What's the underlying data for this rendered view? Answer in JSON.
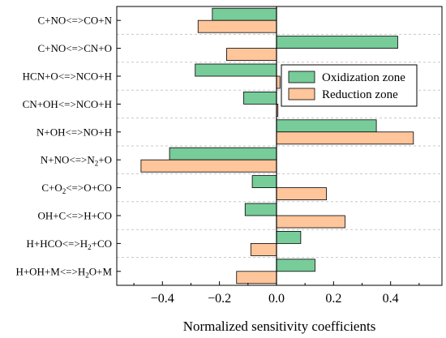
{
  "chart_data": {
    "type": "bar",
    "orientation": "horizontal",
    "title": "",
    "xlabel": "Normalized sensitivity coefficients",
    "ylabel": "",
    "xlim": [
      -0.56,
      0.58
    ],
    "xticks": [
      -0.4,
      -0.2,
      0.0,
      0.2,
      0.4
    ],
    "xtick_labels": [
      "−0.4",
      "−0.2",
      "0.0",
      "0.2",
      "0.4"
    ],
    "grid": "horizontal dashed",
    "legend_position": "upper-right",
    "categories": [
      "C+NO<=>CO+N",
      "C+NO<=>CN+O",
      "HCN+O<=>NCO+H",
      "CN+OH<=>NCO+H",
      "N+OH<=>NO+H",
      "N+NO<=>N2+O",
      "C+O2<=>O+CO",
      "OH+C<=>H+CO",
      "H+HCO<=>H2+CO",
      "H+OH+M<=>H2O+M"
    ],
    "category_parts": [
      [
        {
          "t": "C+NO<=>CO+N"
        }
      ],
      [
        {
          "t": "C+NO<=>CN+O"
        }
      ],
      [
        {
          "t": "HCN+O<=>NCO+H"
        }
      ],
      [
        {
          "t": "CN+OH<=>NCO+H"
        }
      ],
      [
        {
          "t": "N+OH<=>NO+H"
        }
      ],
      [
        {
          "t": "N+NO<=>N"
        },
        {
          "t": "2",
          "sub": true
        },
        {
          "t": "+O"
        }
      ],
      [
        {
          "t": "C+O"
        },
        {
          "t": "2",
          "sub": true
        },
        {
          "t": "<=>O+CO"
        }
      ],
      [
        {
          "t": "OH+C<=>H+CO"
        }
      ],
      [
        {
          "t": "H+HCO<=>H"
        },
        {
          "t": "2",
          "sub": true
        },
        {
          "t": "+CO"
        }
      ],
      [
        {
          "t": "H+OH+M<=>H"
        },
        {
          "t": "2",
          "sub": true
        },
        {
          "t": "O+M"
        }
      ]
    ],
    "series": [
      {
        "name": "Oxidization zone",
        "color": "#77cc99",
        "values": [
          -0.225,
          0.425,
          -0.285,
          -0.115,
          0.35,
          -0.375,
          -0.085,
          -0.11,
          0.085,
          0.135
        ]
      },
      {
        "name": "Reduction zone",
        "color": "#ffc59b",
        "values": [
          -0.275,
          -0.175,
          0.012,
          0.005,
          0.48,
          -0.475,
          0.175,
          0.24,
          -0.09,
          -0.14
        ]
      }
    ]
  }
}
